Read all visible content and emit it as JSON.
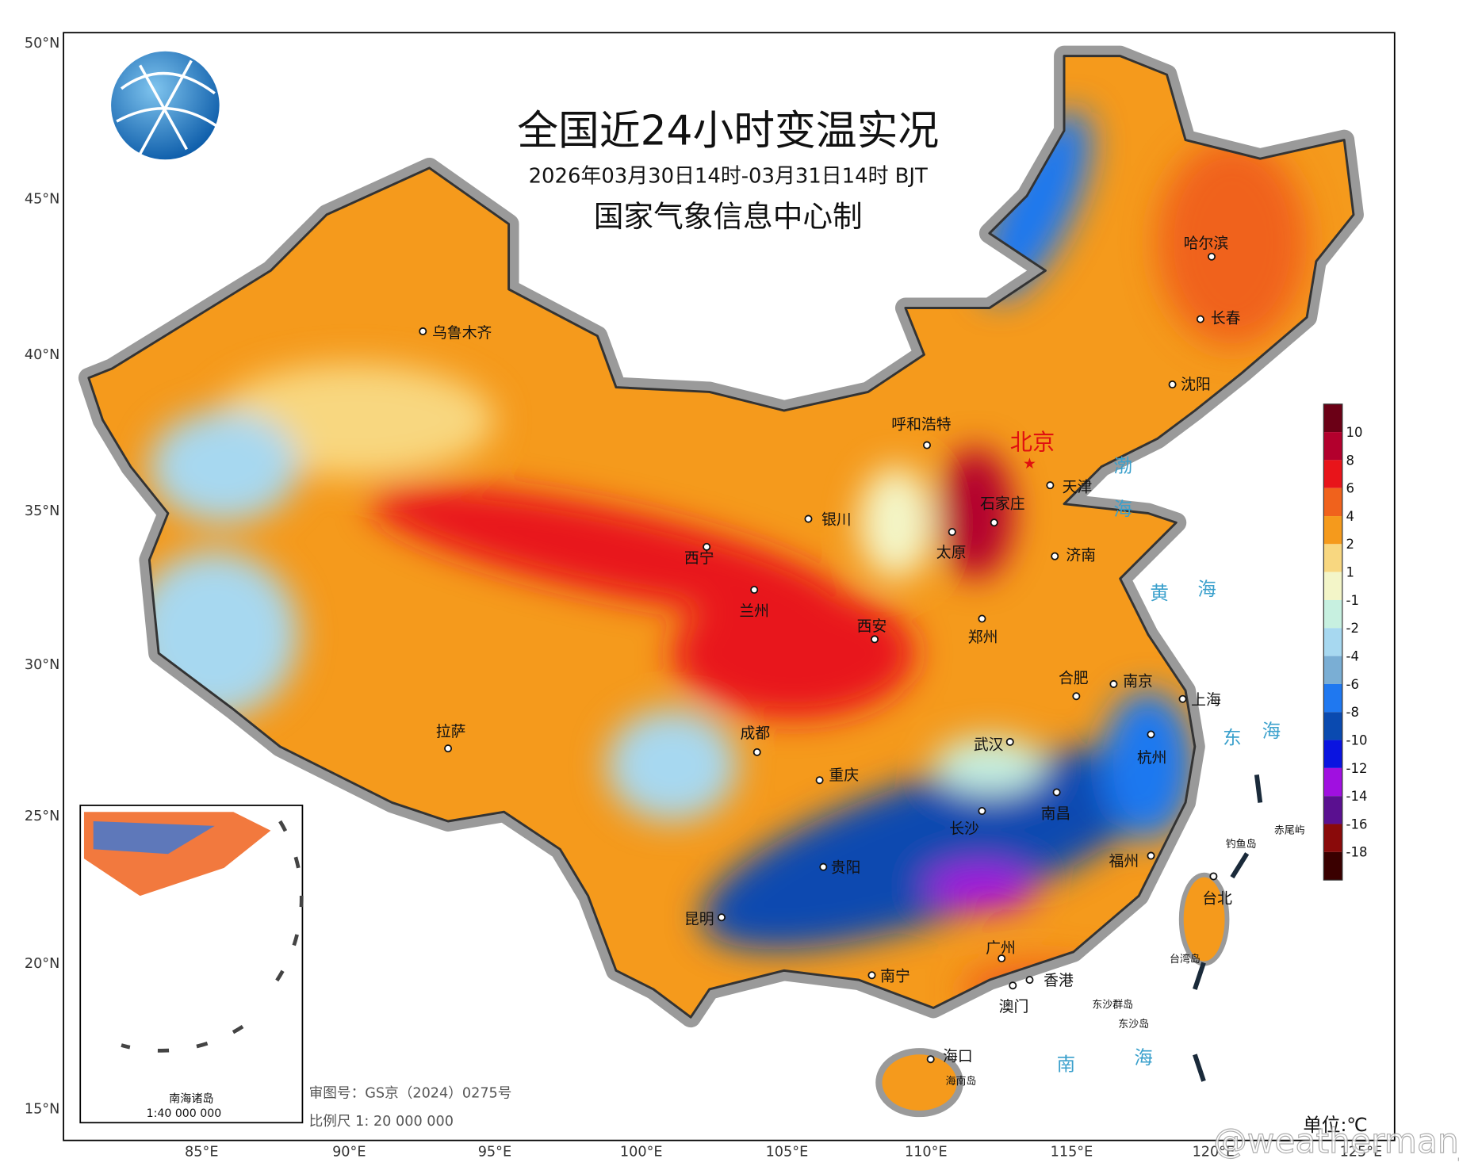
{
  "header": {
    "title": "全国近24小时变温实况",
    "subtitle": "2026年03月30日14时-03月31日14时 BJT",
    "producer": "国家气象信息中心制"
  },
  "axes": {
    "latitude": [
      "50°N",
      "45°N",
      "40°N",
      "35°N",
      "30°N",
      "25°N",
      "20°N",
      "15°N"
    ],
    "longitude": [
      "85°E",
      "90°E",
      "95°E",
      "100°E",
      "105°E",
      "110°E",
      "115°E",
      "120°E",
      "125°E"
    ]
  },
  "cities": [
    "乌鲁木齐",
    "呼和浩特",
    "北京",
    "天津",
    "石家庄",
    "太原",
    "济南",
    "银川",
    "西宁",
    "兰州",
    "西安",
    "郑州",
    "合肥",
    "南京",
    "上海",
    "武汉",
    "杭州",
    "拉萨",
    "成都",
    "重庆",
    "长沙",
    "南昌",
    "福州",
    "贵阳",
    "昆明",
    "南宁",
    "广州",
    "香港",
    "澳门",
    "海口",
    "台北",
    "哈尔滨",
    "长春",
    "沈阳"
  ],
  "seas": [
    "渤",
    "海",
    "黄",
    "海",
    "东",
    "海",
    "南",
    "海"
  ],
  "islands": [
    "钓鱼岛",
    "赤尾屿",
    "台湾岛",
    "东沙群岛",
    "东沙岛",
    "海南岛"
  ],
  "inset": {
    "title": "南海诸岛",
    "scale": "1:40 000 000"
  },
  "notes": {
    "approval": "审图号：GS京（2024）0275号",
    "scale": "比例尺 1: 20 000 000"
  },
  "legend": {
    "unit": "单位:℃",
    "ticks": [
      "10",
      "8",
      "6",
      "4",
      "2",
      "1",
      "-1",
      "-2",
      "-4",
      "-6",
      "-8",
      "-10",
      "-12",
      "-14",
      "-16",
      "-18"
    ],
    "colors": [
      "#6b0016",
      "#b3002d",
      "#e8141a",
      "#f0621c",
      "#f59a1c",
      "#f8d780",
      "#f3f5c8",
      "#c7f0e0",
      "#a7d8f0",
      "#7aaed4",
      "#1f78f0",
      "#0a4ab0",
      "#0a14e0",
      "#a010e0",
      "#5a1090",
      "#8a0a0a",
      "#3a0000"
    ]
  },
  "watermark": "@weatherman_信欣"
}
